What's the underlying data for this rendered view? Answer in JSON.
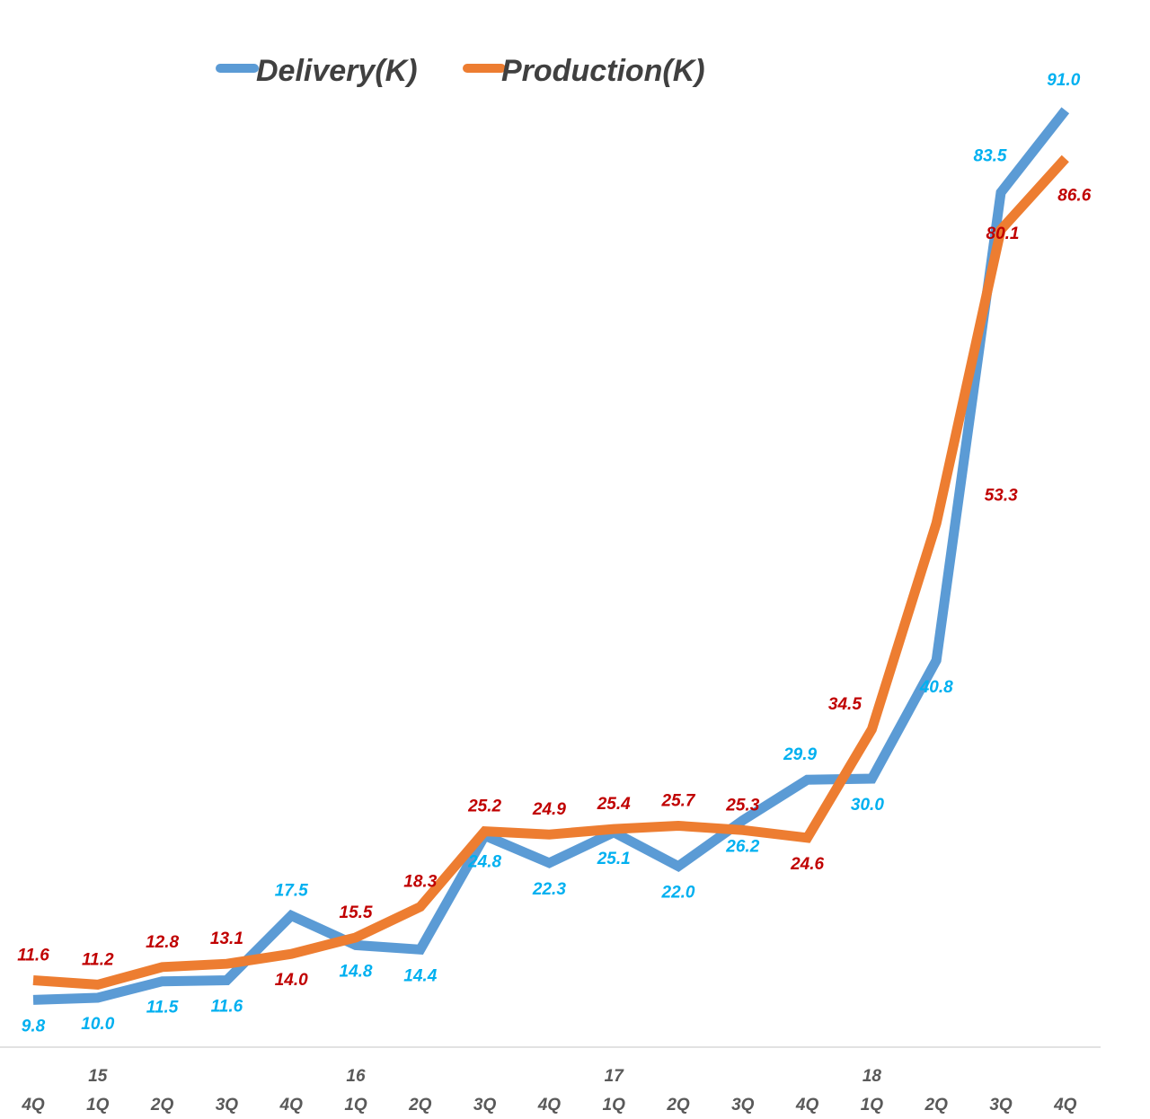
{
  "chart_data": {
    "type": "line",
    "title": "",
    "xlabel": "",
    "ylabel": "",
    "ylim": [
      0,
      100
    ],
    "categories": [
      "4Q",
      "1Q",
      "2Q",
      "3Q",
      "4Q",
      "1Q",
      "2Q",
      "3Q",
      "4Q",
      "1Q",
      "2Q",
      "3Q",
      "4Q",
      "1Q",
      "2Q",
      "3Q",
      "4Q"
    ],
    "years": [
      {
        "label": "15",
        "index": 1
      },
      {
        "label": "16",
        "index": 5
      },
      {
        "label": "17",
        "index": 9
      },
      {
        "label": "18",
        "index": 13
      }
    ],
    "legend_position": "top",
    "series": [
      {
        "name": "Delivery(K)",
        "color": "#5B9BD5",
        "label_color": "#00B0F0",
        "values": [
          9.8,
          10.0,
          11.5,
          11.6,
          17.5,
          14.8,
          14.4,
          24.8,
          22.3,
          25.1,
          22.0,
          26.2,
          29.9,
          30.0,
          40.8,
          83.5,
          91.0
        ],
        "labels": [
          "9.8",
          "10.0",
          "11.5",
          "11.6",
          "17.5",
          "14.8",
          "14.4",
          "24.8",
          "22.3",
          "25.1",
          "22.0",
          "26.2",
          "29.9",
          "30.0",
          "40.8",
          "83.5",
          "91.0"
        ]
      },
      {
        "name": "Production(K)",
        "color": "#ED7D31",
        "label_color": "#C00000",
        "values": [
          11.6,
          11.2,
          12.8,
          13.1,
          14.0,
          15.5,
          18.3,
          25.2,
          24.9,
          25.4,
          25.7,
          25.3,
          24.6,
          34.5,
          53.3,
          80.1,
          86.6
        ],
        "labels": [
          "11.6",
          "11.2",
          "12.8",
          "13.1",
          "14.0",
          "15.5",
          "18.3",
          "25.2",
          "24.9",
          "25.4",
          "25.7",
          "25.3",
          "24.6",
          "34.5",
          "53.3",
          "80.1",
          "86.6"
        ]
      }
    ]
  }
}
